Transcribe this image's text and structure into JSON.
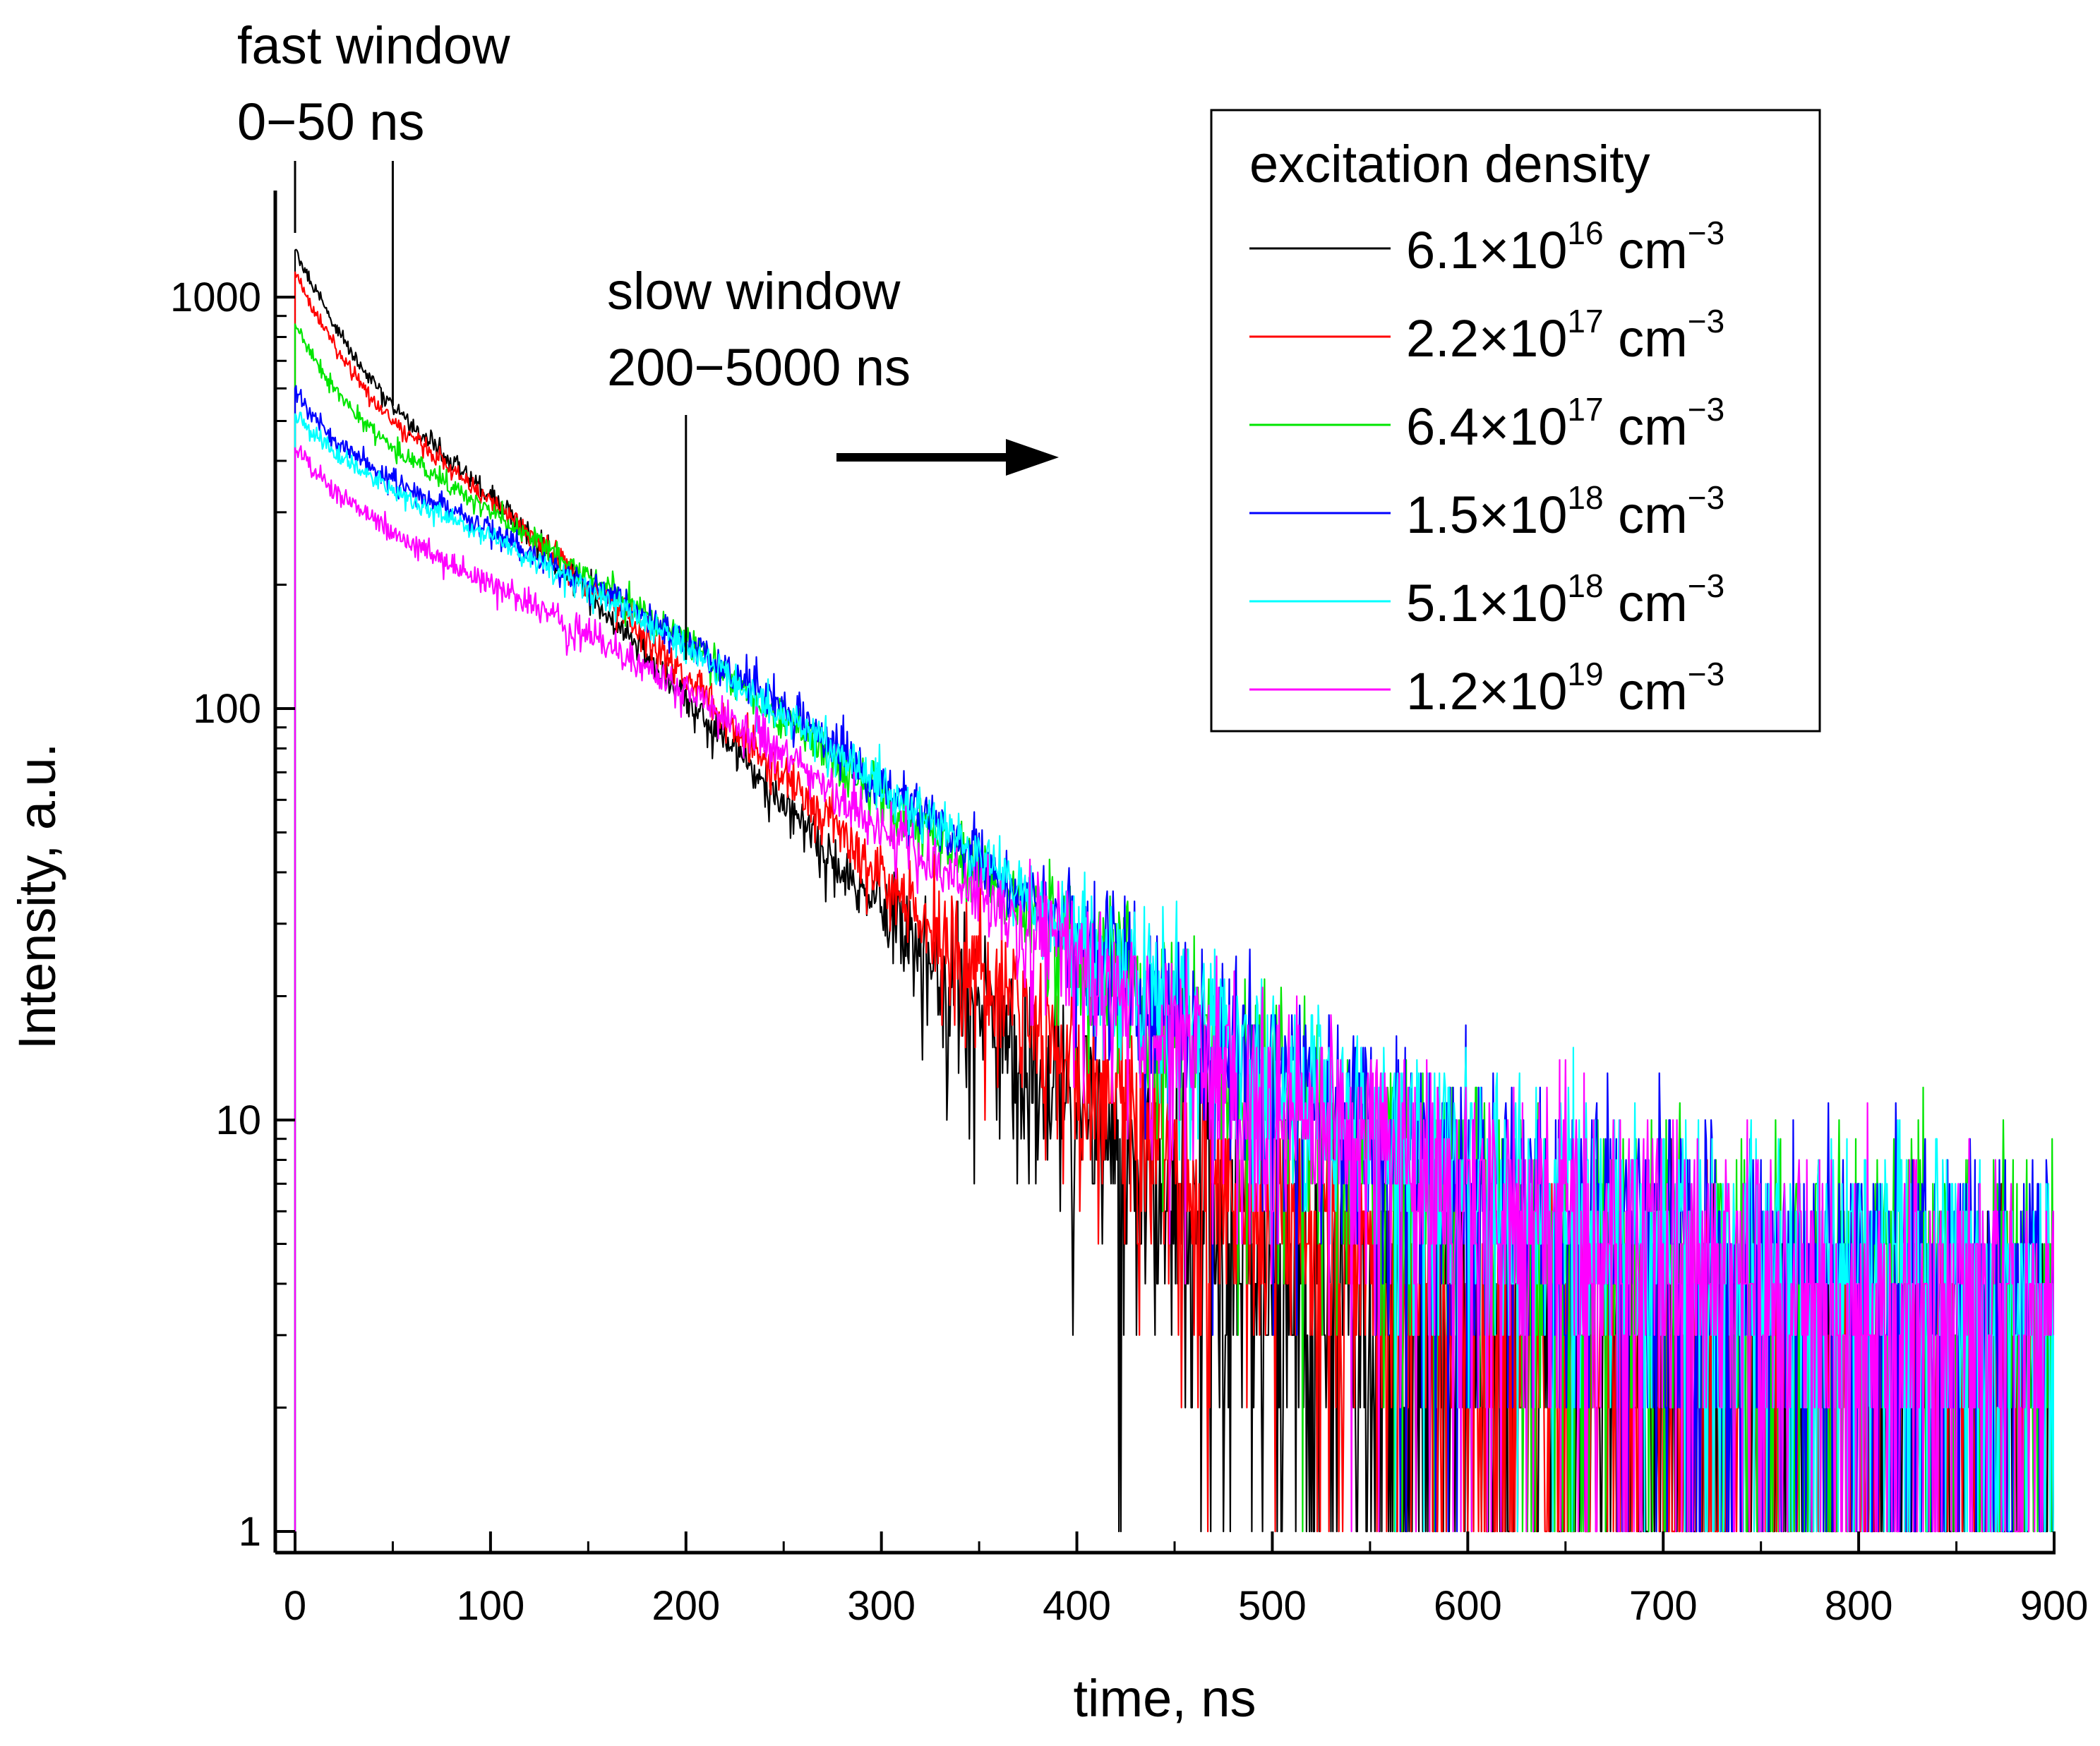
{
  "chart_data": {
    "type": "line",
    "xlabel": "time, ns",
    "ylabel": "Intensity, a.u.",
    "xlim": [
      -10,
      900
    ],
    "ylim": [
      0.87,
      1600
    ],
    "yscale": "log",
    "x_ticks": [
      0,
      100,
      200,
      300,
      400,
      500,
      600,
      700,
      800,
      900
    ],
    "y_ticks": [
      1,
      10,
      100,
      1000
    ],
    "grid": false,
    "legend": {
      "title": "excitation density",
      "position": "top-right",
      "unit": "cm",
      "unit_exponent": "−3"
    },
    "series": [
      {
        "label": "6.1×10",
        "exponent": "16",
        "color": "#000000",
        "x": [
          0,
          10,
          20,
          35,
          50,
          75,
          100,
          150,
          200,
          250,
          300,
          350,
          400,
          450,
          500,
          550,
          600,
          700,
          800,
          900
        ],
        "y": [
          1300,
          1050,
          860,
          660,
          540,
          420,
          330,
          190,
          105,
          58,
          32,
          18,
          10.5,
          6.3,
          4.2,
          3.0,
          2.6,
          2.3,
          2.2,
          2.2
        ]
      },
      {
        "label": "2.2×10",
        "exponent": "17",
        "color": "#ff0000",
        "x": [
          0,
          10,
          20,
          35,
          50,
          75,
          100,
          150,
          200,
          250,
          300,
          350,
          400,
          450,
          500,
          550,
          600,
          700,
          800,
          900
        ],
        "y": [
          1150,
          920,
          760,
          600,
          500,
          400,
          320,
          200,
          120,
          68,
          40,
          23,
          13.5,
          8.5,
          5.6,
          4.0,
          3.2,
          2.6,
          2.4,
          2.4
        ]
      },
      {
        "label": "6.4×10",
        "exponent": "17",
        "color": "#00e600",
        "x": [
          0,
          10,
          20,
          35,
          50,
          75,
          100,
          150,
          200,
          250,
          300,
          350,
          400,
          450,
          500,
          550,
          600,
          700,
          800,
          900
        ],
        "y": [
          860,
          700,
          600,
          500,
          430,
          360,
          300,
          210,
          145,
          95,
          62,
          40,
          26,
          17.5,
          12,
          8.5,
          6.5,
          4.6,
          3.8,
          3.6
        ]
      },
      {
        "label": "1.5×10",
        "exponent": "18",
        "color": "#0000ff",
        "x": [
          0,
          10,
          20,
          35,
          50,
          75,
          100,
          150,
          200,
          250,
          300,
          350,
          400,
          450,
          500,
          550,
          600,
          700,
          800,
          900
        ],
        "y": [
          600,
          510,
          450,
          400,
          360,
          310,
          270,
          200,
          145,
          100,
          66,
          43,
          28,
          19,
          13,
          9.5,
          7.2,
          5.0,
          4.0,
          3.7
        ]
      },
      {
        "label": "5.1×10",
        "exponent": "18",
        "color": "#00ffff",
        "x": [
          0,
          10,
          20,
          35,
          50,
          75,
          100,
          150,
          200,
          250,
          300,
          350,
          400,
          450,
          500,
          550,
          600,
          700,
          800,
          900
        ],
        "y": [
          520,
          460,
          420,
          375,
          340,
          300,
          260,
          195,
          140,
          97,
          65,
          43,
          28,
          19,
          13,
          9.5,
          7.2,
          5.0,
          4.0,
          3.7
        ]
      },
      {
        "label": "1.2×10",
        "exponent": "19",
        "color": "#ff00ff",
        "x": [
          0,
          10,
          20,
          35,
          50,
          75,
          100,
          150,
          200,
          250,
          300,
          350,
          400,
          450,
          500,
          550,
          600,
          700,
          800,
          900
        ],
        "y": [
          430,
          380,
          340,
          300,
          270,
          230,
          200,
          150,
          110,
          78,
          52,
          35,
          23.5,
          16,
          11,
          8.0,
          6.2,
          4.4,
          3.6,
          3.3
        ]
      }
    ],
    "annotations": [
      {
        "text_line1": "fast window",
        "text_line2": "0−50 ns",
        "marker_x": [
          0,
          50
        ]
      },
      {
        "text_line1": "slow window",
        "text_line2": "200−5000 ns",
        "marker_x": [
          200
        ]
      }
    ]
  }
}
